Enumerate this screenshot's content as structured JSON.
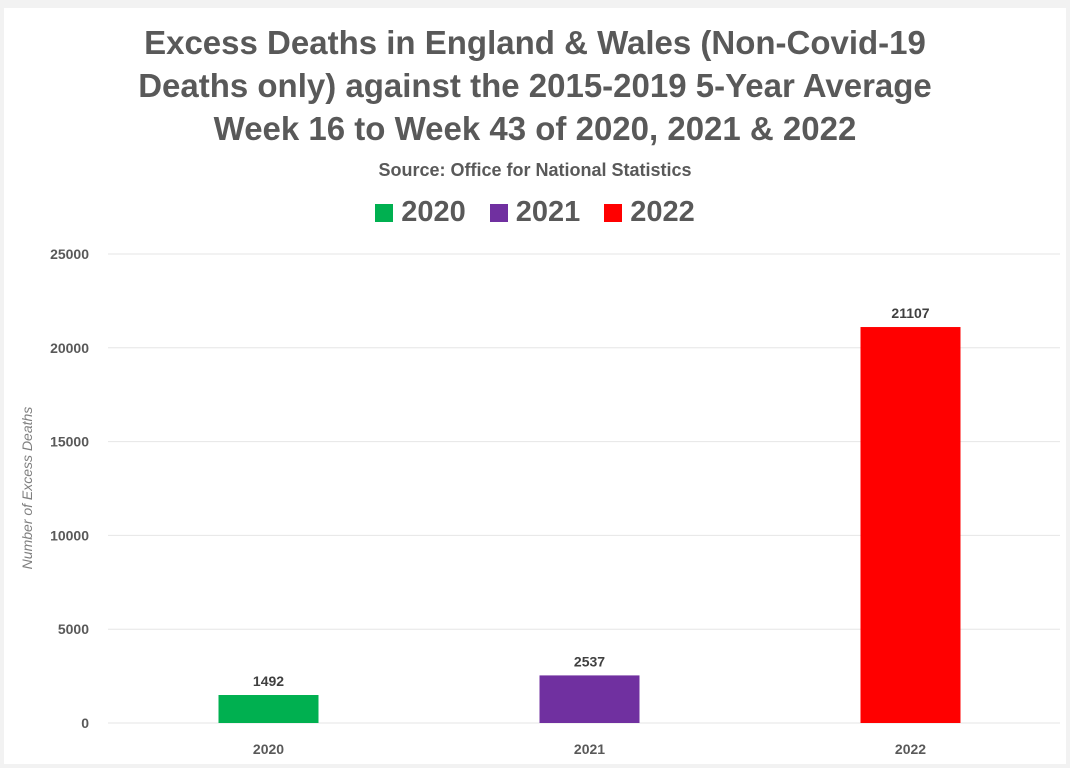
{
  "chart_data": {
    "type": "bar",
    "title": [
      "Excess Deaths in England & Wales (Non-Covid-19",
      "Deaths only) against the 2015-2019 5-Year Average",
      "Week 16 to Week 43 of 2020, 2021 & 2022"
    ],
    "subtitle": "Source: Office for National Statistics",
    "categories": [
      "2020",
      "2021",
      "2022"
    ],
    "values": [
      1492,
      2537,
      21107
    ],
    "colors": [
      "#00b050",
      "#7030a0",
      "#ff0000"
    ],
    "legend": [
      "2020",
      "2021",
      "2022"
    ],
    "legend_position": "top",
    "xlabel": "",
    "ylabel": "Number of Excess Deaths",
    "ylim": [
      0,
      25000
    ],
    "yticks": [
      0,
      5000,
      10000,
      15000,
      20000,
      25000
    ],
    "grid": true
  }
}
